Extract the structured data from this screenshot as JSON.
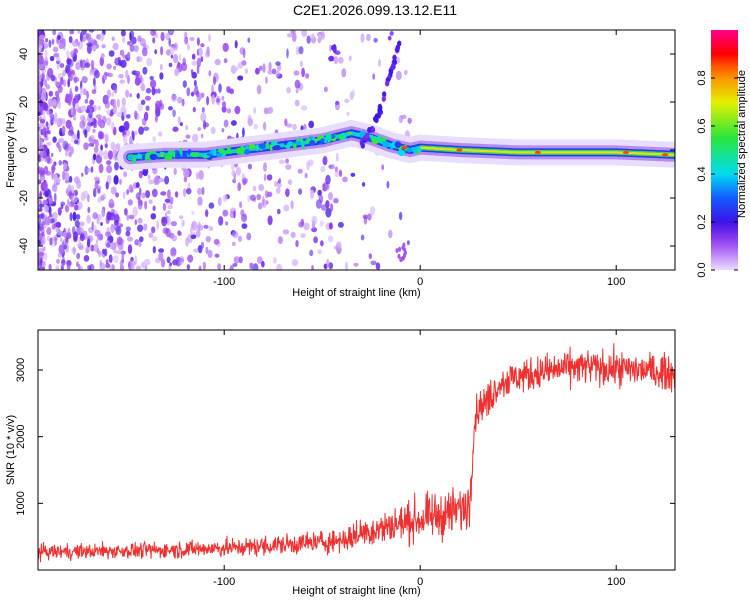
{
  "title": "C2E1.2026.099.13.12.E11",
  "chart_data": [
    {
      "type": "heatmap",
      "xlabel": "Height of straight line (km)",
      "ylabel": "Frequency (Hz)",
      "xlim": [
        -195,
        130
      ],
      "ylim": [
        -50,
        50
      ],
      "xticks": [
        -100,
        0,
        100
      ],
      "yticks": [
        -40,
        -20,
        0,
        20,
        40
      ],
      "ridge": {
        "x": [
          -148,
          -130,
          -110,
          -90,
          -70,
          -50,
          -35,
          -25,
          -15,
          -10,
          -5,
          0,
          20,
          50,
          80,
          100,
          130
        ],
        "y": [
          -3,
          -2,
          -2,
          0,
          2,
          4,
          7,
          5,
          2,
          1,
          0,
          1,
          0,
          -1,
          -1,
          -1,
          -2
        ]
      },
      "chirp": {
        "x": [
          -30,
          -25,
          -20,
          -15,
          -10
        ],
        "y": [
          2,
          8,
          18,
          32,
          46
        ]
      },
      "colorbar": {
        "label": "Normalized spectral amplitude",
        "range": [
          0,
          1
        ],
        "ticks": [
          0.0,
          0.2,
          0.4,
          0.6,
          0.8
        ]
      }
    },
    {
      "type": "line",
      "xlabel": "Height of straight line (km)",
      "ylabel": "SNR (10 * v/v)",
      "xlim": [
        -195,
        130
      ],
      "ylim": [
        0,
        3600
      ],
      "xticks": [
        -100,
        0,
        100
      ],
      "yticks": [
        1000,
        2000,
        3000
      ],
      "series": [
        {
          "color": "#ee3030",
          "x": [
            -195,
            -170,
            -150,
            -130,
            -110,
            -90,
            -70,
            -50,
            -40,
            -35,
            -30,
            -20,
            -10,
            0,
            10,
            20,
            25,
            28,
            30,
            35,
            40,
            50,
            60,
            80,
            100,
            115,
            130
          ],
          "y": [
            270,
            280,
            290,
            300,
            320,
            340,
            380,
            420,
            450,
            480,
            560,
            620,
            700,
            760,
            820,
            900,
            980,
            2300,
            2450,
            2550,
            2800,
            2900,
            2960,
            3050,
            3020,
            3000,
            2950
          ]
        }
      ]
    }
  ]
}
